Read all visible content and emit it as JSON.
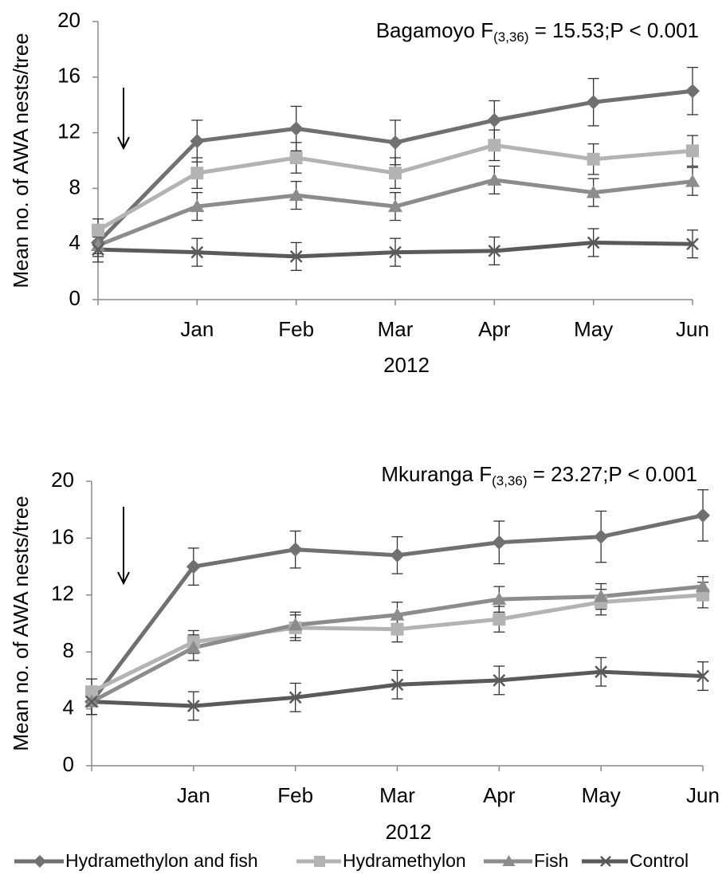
{
  "chart_data": [
    {
      "type": "line",
      "annotation": {
        "text": "Bagamoyo  F",
        "sub": "(3,36)",
        "rest": " = 15.53;P < 0.001"
      },
      "ylabel": "Mean no. of AWA nests/tree",
      "xlabel": "2012",
      "categories": [
        null,
        "Jan",
        "Feb",
        "Mar",
        "Apr",
        "May",
        "Jun"
      ],
      "ylim": [
        0,
        20
      ],
      "yticks": [
        0,
        4,
        8,
        12,
        16,
        20
      ],
      "series": [
        {
          "name": "Hydramethylon and fish",
          "color": "#707070",
          "marker": "diamond",
          "values": [
            4.1,
            11.4,
            12.3,
            11.3,
            12.9,
            14.2,
            15.0
          ],
          "errors": [
            0.8,
            1.5,
            1.6,
            1.6,
            1.4,
            1.7,
            1.7
          ]
        },
        {
          "name": "Hydramethylon",
          "color": "#b3b3b3",
          "marker": "square",
          "values": [
            5.0,
            9.1,
            10.2,
            9.1,
            11.1,
            10.1,
            10.7
          ],
          "errors": [
            0.8,
            1.1,
            1.1,
            1.1,
            1.1,
            1.1,
            1.1
          ]
        },
        {
          "name": "Fish",
          "color": "#8c8c8c",
          "marker": "triangle",
          "values": [
            3.9,
            6.7,
            7.5,
            6.7,
            8.6,
            7.7,
            8.5
          ],
          "errors": [
            0.8,
            1.0,
            1.0,
            1.0,
            1.0,
            1.0,
            1.0
          ]
        },
        {
          "name": "Control",
          "color": "#5a5a5a",
          "marker": "x",
          "values": [
            3.6,
            3.4,
            3.1,
            3.4,
            3.5,
            4.1,
            4.0
          ],
          "errors": [
            0.9,
            1.0,
            1.0,
            1.0,
            1.0,
            1.0,
            1.0
          ]
        }
      ]
    },
    {
      "type": "line",
      "annotation": {
        "text": "Mkuranga F",
        "sub": "(3,36)",
        "rest": " = 23.27;P < 0.001"
      },
      "ylabel": "Mean no. of AWA nests/tree",
      "xlabel": "2012",
      "categories": [
        null,
        "Jan",
        "Feb",
        "Mar",
        "Apr",
        "May",
        "Jun"
      ],
      "ylim": [
        0,
        20
      ],
      "yticks": [
        0,
        4,
        8,
        12,
        16,
        20
      ],
      "series": [
        {
          "color": "#707070",
          "marker": "diamond",
          "values": [
            4.5,
            14.0,
            15.2,
            14.8,
            15.7,
            16.1,
            17.6
          ],
          "errors": [
            0.9,
            1.3,
            1.3,
            1.3,
            1.5,
            1.8,
            1.8
          ]
        },
        {
          "color": "#b3b3b3",
          "marker": "square",
          "values": [
            5.2,
            8.7,
            9.7,
            9.6,
            10.3,
            11.5,
            12.0
          ],
          "errors": [
            0.9,
            0.8,
            0.9,
            0.9,
            0.9,
            0.9,
            0.9
          ]
        },
        {
          "color": "#8c8c8c",
          "marker": "triangle",
          "values": [
            4.5,
            8.3,
            9.9,
            10.6,
            11.7,
            11.9,
            12.6
          ],
          "errors": [
            0.9,
            0.9,
            0.9,
            0.9,
            0.9,
            0.9,
            0.7
          ]
        },
        {
          "color": "#5a5a5a",
          "marker": "x",
          "values": [
            4.5,
            4.2,
            4.8,
            5.7,
            6.0,
            6.6,
            6.3
          ],
          "errors": [
            0.9,
            1.0,
            1.0,
            1.0,
            1.0,
            1.0,
            1.0
          ]
        }
      ]
    }
  ]
}
